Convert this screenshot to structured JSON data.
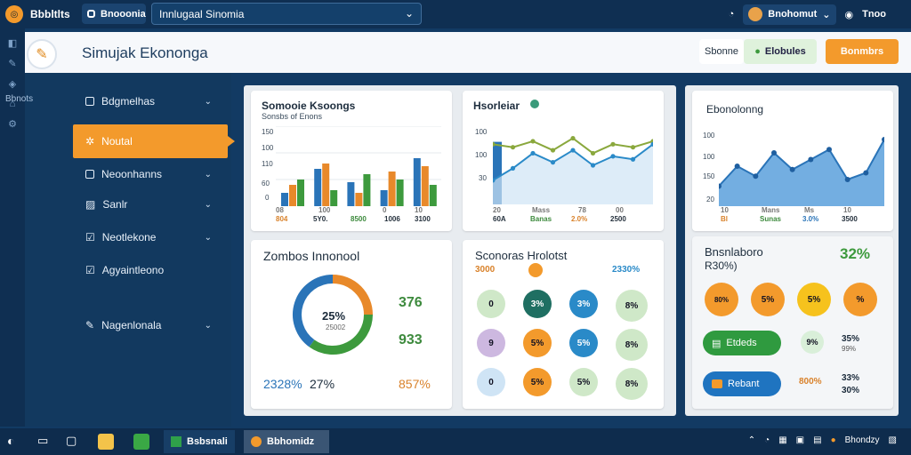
{
  "topbar": {
    "app_name": "Bbbltlts",
    "tab_label": "Bnooonia",
    "address": "Innlugaal Sinomia",
    "user_name": "Bnohomut",
    "right_label": "Tnoo"
  },
  "header": {
    "title": "Simujak Ekononga",
    "btn_plain": "Sbonne",
    "btn_green": "Elobules",
    "btn_orange": "Bonmbrs"
  },
  "rail": {
    "label": "Bbnots"
  },
  "sidebar": {
    "items": [
      {
        "label": "Bdgmelhas"
      },
      {
        "label": "Noutal"
      },
      {
        "label": "Neoonhanns"
      },
      {
        "label": "Sanlr"
      },
      {
        "label": "Neotlekone"
      },
      {
        "label": "Agyaintleono"
      },
      {
        "label": "Nagenlonala"
      }
    ]
  },
  "cards": {
    "bar": {
      "title": "Somooie Ksoongs",
      "subtitle": "Sonsbs of Enons",
      "ticks": [
        "150",
        "100",
        "110",
        "60",
        "0"
      ],
      "xlabels": [
        "804",
        "5Y0.",
        "8500",
        "1006",
        "3100"
      ],
      "xlabels_top": [
        "08",
        "100",
        "0",
        "",
        "10"
      ]
    },
    "line": {
      "title": "Hsorleiar",
      "ticks": [
        "100",
        "100",
        "30"
      ],
      "xlabels": [
        "60A",
        "Banas",
        "2.0%",
        "2500"
      ],
      "xlabels_top": [
        "20",
        "Mass",
        "78",
        "00"
      ]
    },
    "area": {
      "title": "Ebonolonng",
      "ticks": [
        "100",
        "100",
        "150",
        "20"
      ],
      "xlabels": [
        "Bl",
        "Sunas",
        "3.0%",
        "3500"
      ],
      "xlabels_top": [
        "10",
        "Mans",
        "Ms",
        "10"
      ]
    },
    "donut": {
      "title": "Zombos Innonool",
      "center_value": "25%",
      "center_sub": "25002",
      "value_a": "376",
      "value_b": "933",
      "bottom_left": "2328%",
      "bottom_mid": "27%",
      "bottom_right": "857%"
    },
    "scenarios": {
      "title": "Sconoras Hrolotst",
      "header_left": "3000",
      "header_right": "2330%",
      "bubbles": [
        [
          "0",
          "3%",
          "3%",
          "8%"
        ],
        [
          "9",
          "5%",
          "5%",
          "8%"
        ],
        [
          "0",
          "5%",
          "5%",
          "8%"
        ]
      ]
    },
    "summary": {
      "title": "Bnsnlaboro",
      "subtitle": "R30%)",
      "pct": "32%",
      "bubbles": [
        "80%",
        "5%",
        "5%",
        "%"
      ],
      "btn_green": "Etdeds",
      "btn_blue": "Rebant",
      "mid_badge": "9%",
      "side_values": [
        "35%",
        "33%",
        "30%",
        "99%"
      ],
      "small_label": "800%"
    }
  },
  "chart_data": [
    {
      "type": "bar",
      "title": "Somooie Ksoongs",
      "categories": [
        "804",
        "5Y0.",
        "8500",
        "1006",
        "3100"
      ],
      "series": [
        {
          "values": [
            25,
            70,
            45,
            30,
            90
          ]
        },
        {
          "values": [
            40,
            80,
            25,
            65,
            75
          ]
        },
        {
          "values": [
            50,
            30,
            60,
            50,
            40
          ]
        }
      ],
      "ylim": [
        0,
        150
      ]
    },
    {
      "type": "line",
      "title": "Hsorleiar",
      "x": [
        0,
        1,
        2,
        3,
        4,
        5,
        6,
        7,
        8
      ],
      "series": [
        {
          "values": [
            100,
            95,
            105,
            90,
            110,
            85,
            100,
            95,
            105
          ]
        },
        {
          "values": [
            40,
            60,
            85,
            70,
            90,
            65,
            80,
            75,
            100
          ]
        }
      ],
      "ylim": [
        0,
        130
      ]
    },
    {
      "type": "area",
      "title": "Ebonolonng",
      "x": [
        0,
        1,
        2,
        3,
        4,
        5,
        6,
        7,
        8,
        9
      ],
      "series": [
        {
          "values": [
            30,
            60,
            45,
            80,
            55,
            70,
            85,
            40,
            50,
            100
          ]
        }
      ],
      "ylim": [
        0,
        120
      ]
    },
    {
      "type": "pie",
      "title": "Zombos Innonool",
      "values": [
        25,
        35,
        40
      ]
    }
  ],
  "taskbar": {
    "app1": "Bsbsnali",
    "app2": "Bbhomidz",
    "tray": "Bhondzy"
  },
  "colors": {
    "accent": "#f39a2c",
    "blue": "#2a74b8",
    "green": "#3d9a3d",
    "sidebar": "#12395f"
  }
}
